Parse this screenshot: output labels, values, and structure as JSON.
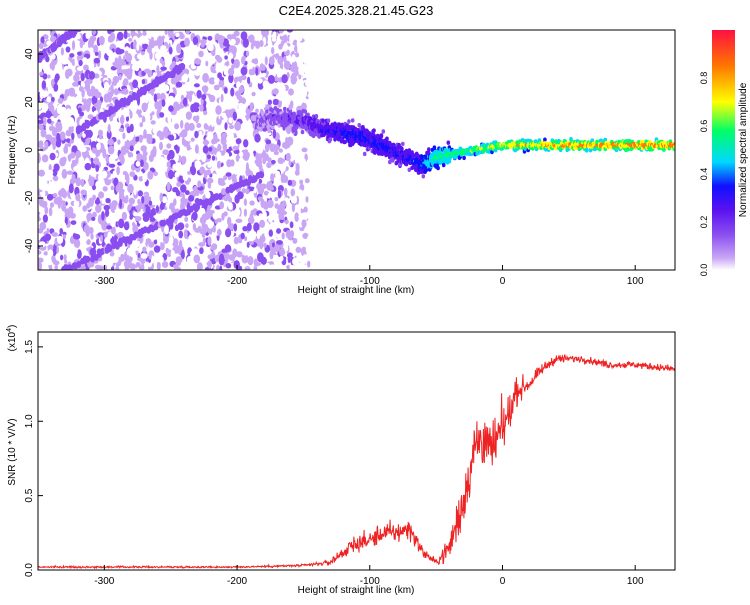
{
  "title": "C2E4.2025.328.21.45.G23",
  "chart_data": [
    {
      "type": "heatmap",
      "name": "spectrogram",
      "xlabel": "Height of straight line (km)",
      "ylabel": "Frequency (Hz)",
      "xlim": [
        -350,
        130
      ],
      "ylim": [
        -50,
        50
      ],
      "xticks": [
        -300,
        -200,
        -100,
        0,
        100
      ],
      "yticks": [
        -40,
        -20,
        0,
        20,
        40
      ],
      "colorbar": {
        "label": "Normalized spectral amplitude",
        "range": [
          0,
          1
        ],
        "ticks": [
          "0.0",
          "0.2",
          "0.4",
          "0.6",
          "0.8"
        ],
        "tick_values": [
          0,
          0.2,
          0.4,
          0.6,
          0.8
        ],
        "colors": [
          "#ffffff",
          "#c9a6f5",
          "#8a4df0",
          "#5a12f0",
          "#1010ff",
          "#00d8ff",
          "#00ff66",
          "#ffff00",
          "#ff7700",
          "#ff1040"
        ]
      },
      "ridge": [
        {
          "x": -185,
          "y": 12,
          "amp": 0.25
        },
        {
          "x": -170,
          "y": 14,
          "amp": 0.3
        },
        {
          "x": -150,
          "y": 12,
          "amp": 0.35
        },
        {
          "x": -130,
          "y": 8,
          "amp": 0.45
        },
        {
          "x": -110,
          "y": 6,
          "amp": 0.5
        },
        {
          "x": -90,
          "y": 2,
          "amp": 0.5
        },
        {
          "x": -75,
          "y": -3,
          "amp": 0.45
        },
        {
          "x": -60,
          "y": -6,
          "amp": 0.55
        },
        {
          "x": -50,
          "y": -3,
          "amp": 0.7
        },
        {
          "x": -30,
          "y": -1,
          "amp": 0.75
        },
        {
          "x": -10,
          "y": 1,
          "amp": 0.8
        },
        {
          "x": 0,
          "y": 2,
          "amp": 0.85
        },
        {
          "x": 30,
          "y": 2,
          "amp": 0.9
        },
        {
          "x": 60,
          "y": 2,
          "amp": 0.95
        },
        {
          "x": 100,
          "y": 2,
          "amp": 0.95
        },
        {
          "x": 130,
          "y": 2,
          "amp": 0.95
        }
      ],
      "noise_region": {
        "x_range": [
          -350,
          -135
        ],
        "y_range": [
          -50,
          50
        ]
      },
      "diagonal_stripes": [
        {
          "x0": -350,
          "y0": 38,
          "x1": -310,
          "y1": 55
        },
        {
          "x0": -330,
          "y0": -50,
          "x1": -180,
          "y1": -10
        },
        {
          "x0": -320,
          "y0": 8,
          "x1": -240,
          "y1": 35
        }
      ]
    },
    {
      "type": "line",
      "name": "snr",
      "xlabel": "Height of straight line (km)",
      "ylabel": "SNR (10 * V/V)",
      "y_multiplier": "(x10",
      "y_multiplier_exp": "4",
      "y_multiplier_close": ")",
      "xlim": [
        -350,
        130
      ],
      "ylim": [
        0,
        1.6
      ],
      "xticks": [
        -300,
        -200,
        -100,
        0,
        100
      ],
      "yticks": [
        "0.0",
        "0.5",
        "1.0",
        "1.5"
      ],
      "ytick_values": [
        0,
        0.5,
        1.0,
        1.5
      ],
      "color": "#ee2222",
      "series": [
        {
          "name": "SNR",
          "x": [
            -350,
            -300,
            -250,
            -200,
            -150,
            -130,
            -120,
            -110,
            -100,
            -90,
            -80,
            -70,
            -60,
            -50,
            -40,
            -35,
            -30,
            -25,
            -20,
            -15,
            -10,
            -5,
            0,
            5,
            10,
            20,
            30,
            40,
            60,
            80,
            100,
            130
          ],
          "y": [
            0.02,
            0.02,
            0.02,
            0.02,
            0.03,
            0.05,
            0.12,
            0.18,
            0.2,
            0.25,
            0.25,
            0.28,
            0.12,
            0.05,
            0.15,
            0.3,
            0.45,
            0.65,
            0.85,
            0.9,
            0.8,
            0.85,
            0.95,
            1.05,
            1.2,
            1.25,
            1.35,
            1.42,
            1.42,
            1.38,
            1.38,
            1.35
          ],
          "noise": [
            0.01,
            0.01,
            0.01,
            0.01,
            0.015,
            0.03,
            0.08,
            0.1,
            0.1,
            0.12,
            0.12,
            0.12,
            0.06,
            0.04,
            0.15,
            0.25,
            0.3,
            0.3,
            0.35,
            0.35,
            0.3,
            0.3,
            0.3,
            0.2,
            0.15,
            0.08,
            0.06,
            0.05,
            0.04,
            0.04,
            0.04,
            0.04
          ]
        }
      ]
    }
  ]
}
